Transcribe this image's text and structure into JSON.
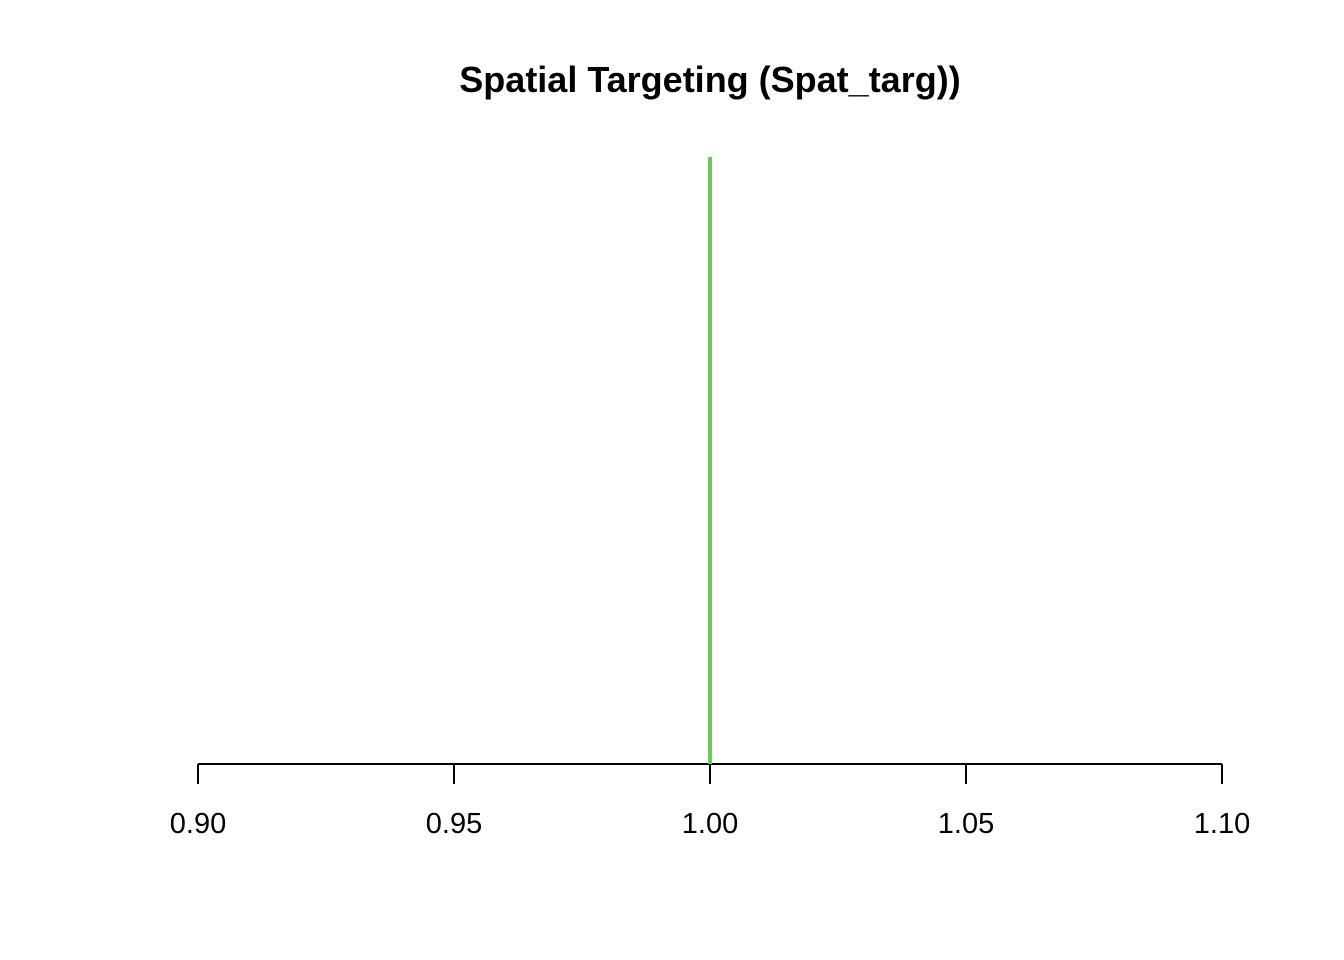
{
  "chart_data": {
    "type": "line",
    "title": "Spatial Targeting (Spat_targ))",
    "xlabel": "",
    "ylabel": "",
    "xlim": [
      0.9,
      1.1
    ],
    "x_ticks": [
      0.9,
      0.95,
      1.0,
      1.05,
      1.1
    ],
    "x_tick_labels": [
      "0.90",
      "0.95",
      "1.00",
      "1.05",
      "1.10"
    ],
    "grid": false,
    "series": [
      {
        "x": [
          1.0,
          1.0
        ],
        "y": [
          0,
          1
        ],
        "color": "#66cc55"
      }
    ]
  }
}
